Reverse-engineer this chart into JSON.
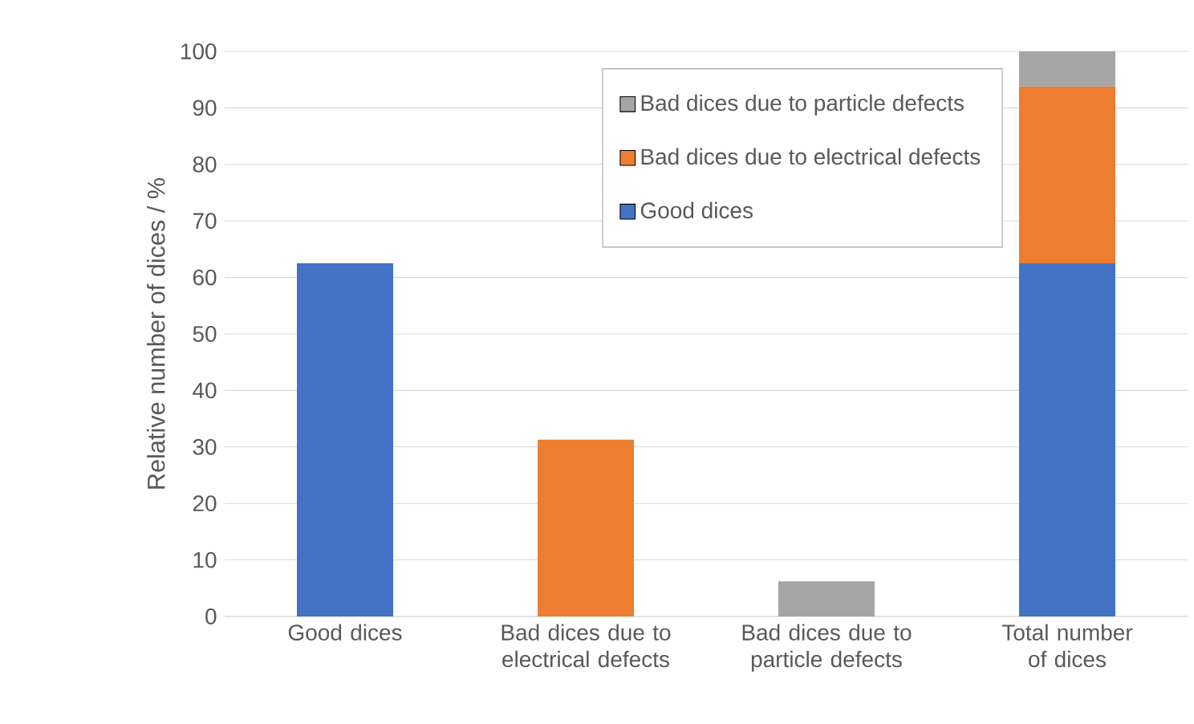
{
  "chart_data": {
    "type": "bar",
    "stacked": true,
    "ylabel": "Relative number of dices / %",
    "categories": [
      "Good dices",
      "Bad dices due to electrical defects",
      "Bad dices due to particle defects",
      "Total number of dices"
    ],
    "series": [
      {
        "name": "Good dices",
        "color": "#4472c4",
        "values": [
          62.5,
          null,
          null,
          62.5
        ]
      },
      {
        "name": "Bad dices due to electrical defects",
        "color": "#ed7d31",
        "values": [
          null,
          31.3,
          null,
          31.3
        ]
      },
      {
        "name": "Bad dices due to particle defects",
        "color": "#a5a5a5",
        "values": [
          null,
          null,
          6.2,
          6.2
        ]
      }
    ],
    "ylim": [
      0,
      100
    ],
    "yticks": [
      0,
      10,
      20,
      30,
      40,
      50,
      60,
      70,
      80,
      90,
      100
    ],
    "grid": "y",
    "legend": "top"
  }
}
